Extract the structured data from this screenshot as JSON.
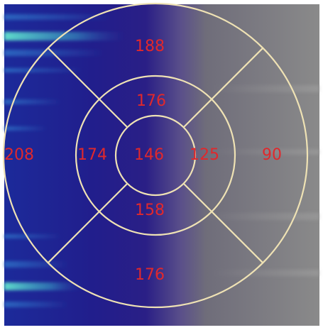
{
  "colors": {
    "ring_stroke": "#efe2b4",
    "label_text": "#e0282c",
    "map_dark_blue": "#1a1f8a",
    "map_cyan_highlight": "#4fe0c8",
    "map_gray": "#7a7a7a"
  },
  "bullseye": {
    "outer": {
      "anterior": "188",
      "septal": "208",
      "lateral": "90",
      "inferior": "176"
    },
    "middle": {
      "anterior": "176",
      "septal": "174",
      "lateral": "125",
      "inferior": "158"
    },
    "apex": "146"
  }
}
